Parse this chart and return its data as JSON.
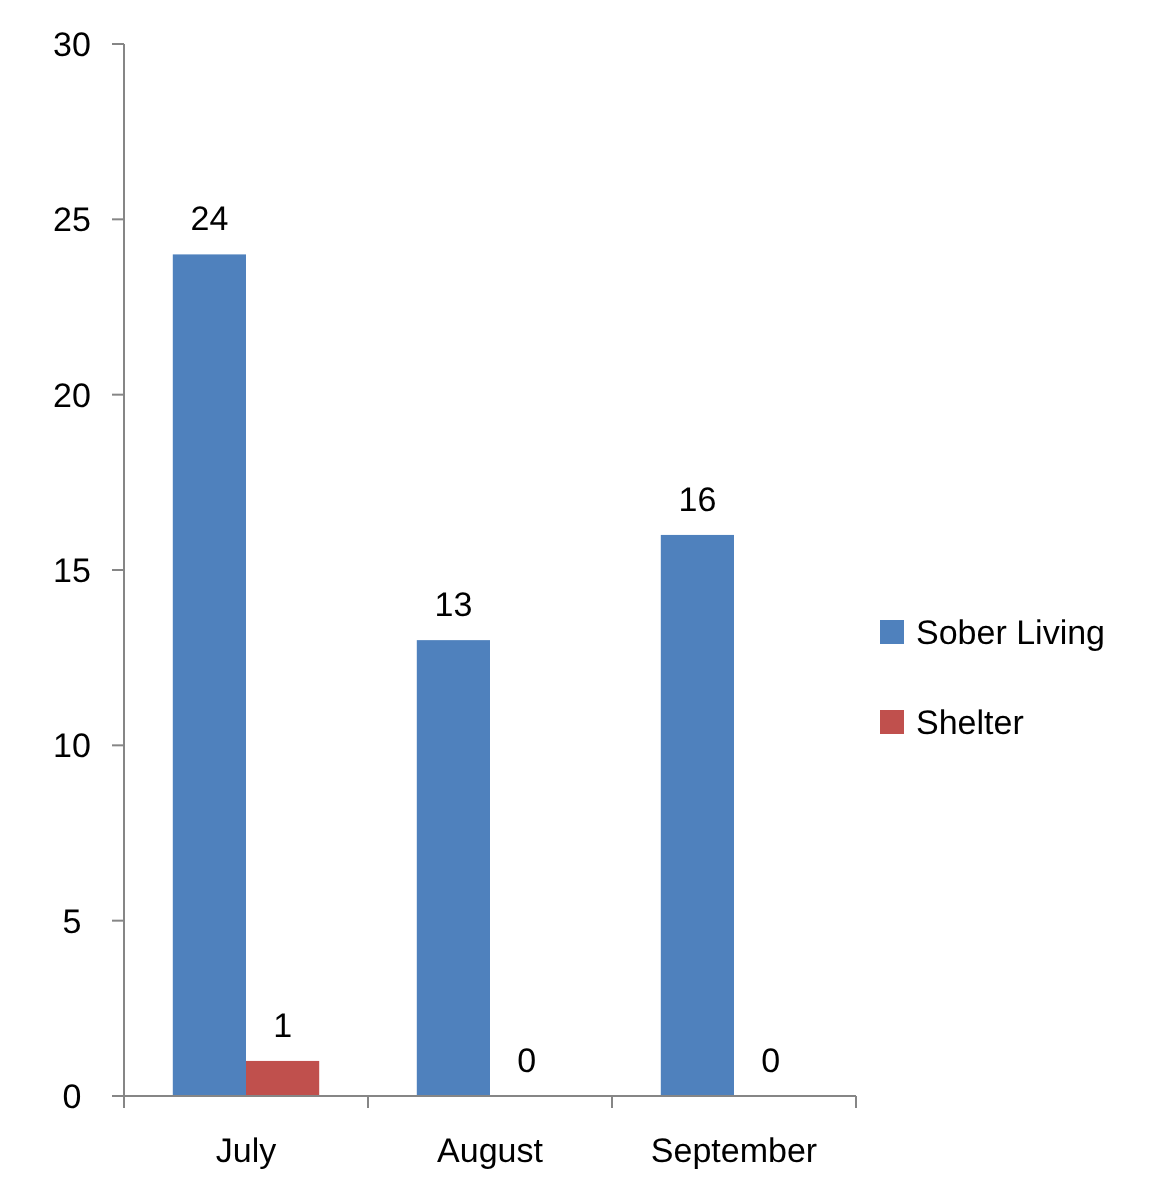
{
  "chart_data": {
    "type": "bar",
    "categories": [
      "July",
      "August",
      "September"
    ],
    "series": [
      {
        "name": "Sober Living",
        "color": "#4f81bd",
        "values": [
          24,
          13,
          16
        ]
      },
      {
        "name": "Shelter",
        "color": "#c0504d",
        "values": [
          1,
          0,
          0
        ]
      }
    ],
    "ylim": [
      0,
      30
    ],
    "yticks": [
      0,
      5,
      10,
      15,
      20,
      25,
      30
    ],
    "data_labels": true,
    "legend": "right",
    "grid": false
  }
}
